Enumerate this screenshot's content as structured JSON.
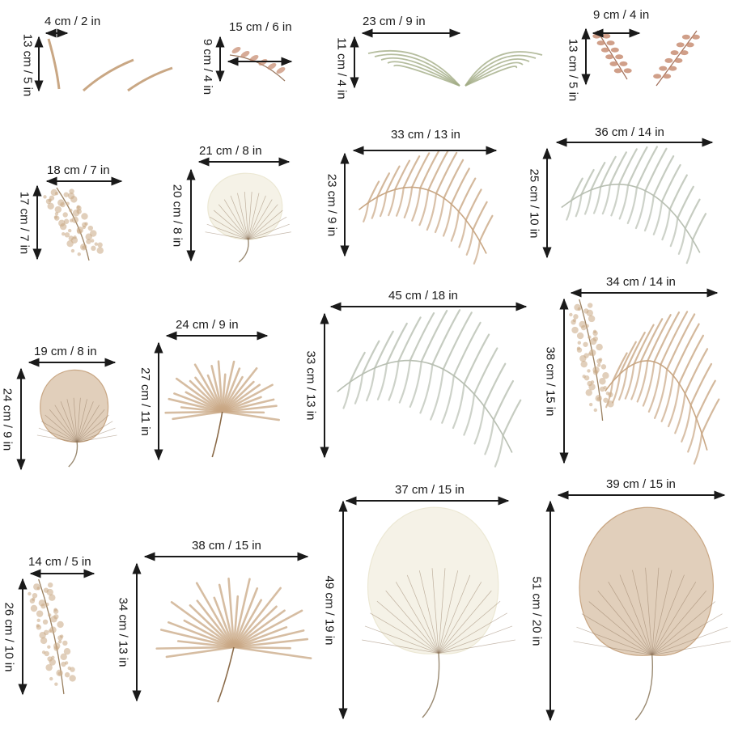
{
  "palette": {
    "text": "#1a1a1a",
    "dried_tan": "#c9a784",
    "dusty_pink": "#c4876b",
    "sage": "#a3ad86",
    "cream": "#ece8d4",
    "grey_green": "#b8bfb2"
  },
  "stickers": [
    {
      "name": "slim-grass-blades",
      "plant": "slim-grass-blades-icon",
      "width_label": "4 cm / 2 in",
      "height_label": "13 cm / 5 in"
    },
    {
      "name": "small-pink-sprig",
      "plant": "sprig-icon",
      "width_label": "15 cm / 6 in",
      "height_label": "9 cm / 4 in"
    },
    {
      "name": "green-grass-pair",
      "plant": "grass-pair-icon",
      "width_label": "23 cm / 9 in",
      "height_label": "11 cm / 4 in"
    },
    {
      "name": "rose-berry-sprigs",
      "plant": "berry-sprig-icon",
      "width_label": "9 cm / 4 in",
      "height_label": "13 cm / 5 in"
    },
    {
      "name": "pampas-tuft-small",
      "plant": "pampas-icon",
      "width_label": "18 cm / 7 in",
      "height_label": "17 cm / 7 in"
    },
    {
      "name": "cream-fan-leaf-small",
      "plant": "fan-leaf-icon",
      "width_label": "21 cm / 8 in",
      "height_label": "20 cm / 8 in"
    },
    {
      "name": "tan-palm-frond",
      "plant": "palm-frond-icon",
      "width_label": "33 cm / 13 in",
      "height_label": "23 cm / 9 in"
    },
    {
      "name": "grey-palm-frond",
      "plant": "palm-frond-icon",
      "width_label": "36 cm / 14 in",
      "height_label": "25 cm / 10 in"
    },
    {
      "name": "tan-fan-leaf",
      "plant": "fan-leaf-icon",
      "width_label": "19 cm / 8 in",
      "height_label": "24 cm / 9 in"
    },
    {
      "name": "spiky-fan-palm-small",
      "plant": "spiky-palm-icon",
      "width_label": "24 cm / 9 in",
      "height_label": "27 cm / 11 in"
    },
    {
      "name": "large-grey-palm-frond",
      "plant": "palm-frond-icon",
      "width_label": "45 cm / 18 in",
      "height_label": "33 cm / 13 in"
    },
    {
      "name": "pampas-palm-bundle",
      "plant": "pampas-palm-icon",
      "width_label": "34 cm / 14 in",
      "height_label": "38 cm / 15 in"
    },
    {
      "name": "pampas-plume-tall",
      "plant": "pampas-icon",
      "width_label": "14 cm / 5 in",
      "height_label": "26 cm / 10 in"
    },
    {
      "name": "spiky-fan-palm-large",
      "plant": "spiky-palm-icon",
      "width_label": "38 cm / 15 in",
      "height_label": "34 cm / 13 in"
    },
    {
      "name": "cream-fan-leaf-large",
      "plant": "fan-leaf-icon",
      "width_label": "37 cm / 15 in",
      "height_label": "49 cm / 19 in"
    },
    {
      "name": "tan-fan-leaf-large",
      "plant": "fan-leaf-icon",
      "width_label": "39 cm / 15 in",
      "height_label": "51 cm / 20 in"
    }
  ]
}
